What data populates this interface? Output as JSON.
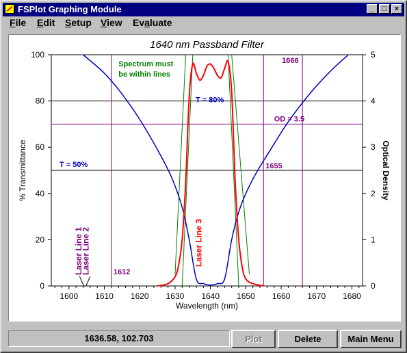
{
  "window": {
    "title": "FSPlot Graphing Module",
    "controls": [
      "_",
      "□",
      "×"
    ]
  },
  "menu": [
    {
      "label": "File"
    },
    {
      "label": "Edit"
    },
    {
      "label": "Setup"
    },
    {
      "label": "View"
    },
    {
      "label": "Evaluate"
    }
  ],
  "status": {
    "coords": "1636.58, 102.703"
  },
  "buttons": {
    "plot": "Plot",
    "delete": "Delete",
    "main_menu": "Main Menu"
  },
  "colors": {
    "blue_curve": "#0000c0",
    "red_curve": "#ff0000",
    "green_lines": "#008000",
    "purple_lines": "#800080",
    "grid_lines": "#000000"
  },
  "chart_data": {
    "type": "line",
    "title": "1640 nm Passband Filter",
    "xlabel": "Wavelength (nm)",
    "ylabel": "% Transmittance",
    "y2label": "Optical Density",
    "xlim": [
      1595,
      1683
    ],
    "ylim": [
      0,
      100
    ],
    "y2lim": [
      0,
      5
    ],
    "xticks": [
      1600,
      1610,
      1620,
      1630,
      1640,
      1650,
      1660,
      1670,
      1680
    ],
    "yticks": [
      0,
      20,
      40,
      60,
      80,
      100
    ],
    "y2ticks": [
      0,
      1,
      2,
      3,
      4,
      5
    ],
    "series": [
      {
        "color": "blue",
        "axis": "y2",
        "x": [
          1604,
          1610,
          1615,
          1620,
          1625,
          1629,
          1632,
          1634,
          1636,
          1638,
          1640,
          1642,
          1644,
          1646,
          1648,
          1650,
          1653,
          1657,
          1662,
          1668,
          1674,
          1679
        ],
        "y": [
          5.0,
          4.6,
          4.15,
          3.6,
          2.95,
          2.35,
          1.7,
          1.0,
          0.15,
          0.05,
          0.02,
          0.05,
          0.15,
          1.0,
          1.6,
          2.0,
          2.45,
          2.95,
          3.55,
          4.15,
          4.65,
          5.0
        ]
      },
      {
        "color": "red",
        "axis": "y",
        "x": [
          1625,
          1628,
          1630,
          1631,
          1632,
          1633,
          1634,
          1635,
          1636,
          1637,
          1638,
          1639,
          1640,
          1641,
          1642,
          1643,
          1644,
          1645,
          1646,
          1647,
          1648,
          1649,
          1650,
          1652,
          1655
        ],
        "y": [
          0,
          1,
          4,
          9,
          20,
          45,
          82,
          96,
          92,
          89,
          91,
          95,
          96,
          94,
          91,
          90,
          94,
          97,
          84,
          45,
          20,
          8,
          3,
          1,
          0
        ]
      }
    ],
    "limit_lines": [
      {
        "x": [
          1630,
          1633
        ],
        "y": [
          5,
          100
        ]
      },
      {
        "x": [
          1632,
          1635
        ],
        "y": [
          0,
          100
        ]
      },
      {
        "x": [
          1648,
          1645
        ],
        "y": [
          0,
          100
        ]
      },
      {
        "x": [
          1651,
          1646
        ],
        "y": [
          5,
          100
        ]
      }
    ],
    "hlines": [
      {
        "y": 80,
        "label": "T = 80%"
      },
      {
        "y": 50,
        "label": "T = 50%"
      },
      {
        "y": 70,
        "label": "OD = 3.5"
      }
    ],
    "vlines": [
      {
        "x": 1612,
        "label": "1612"
      },
      {
        "x": 1655,
        "label": "1655"
      },
      {
        "x": 1666,
        "label": "1666"
      }
    ],
    "annotations": [
      {
        "text": "Spectrum must"
      },
      {
        "text": "be within lines"
      },
      {
        "text": "Laser Line 1"
      },
      {
        "text": "Laser Line 2"
      },
      {
        "text": "Laser Line 3"
      }
    ]
  }
}
